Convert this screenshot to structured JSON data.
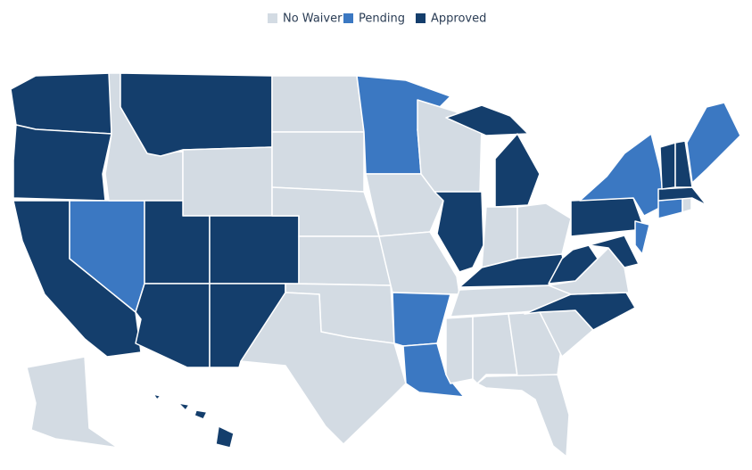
{
  "legend": {
    "items": [
      {
        "label": "No Waiver",
        "color": "#d3dbe3"
      },
      {
        "label": "Pending",
        "color": "#3b78c2"
      },
      {
        "label": "Approved",
        "color": "#143e6c"
      }
    ]
  }
}
